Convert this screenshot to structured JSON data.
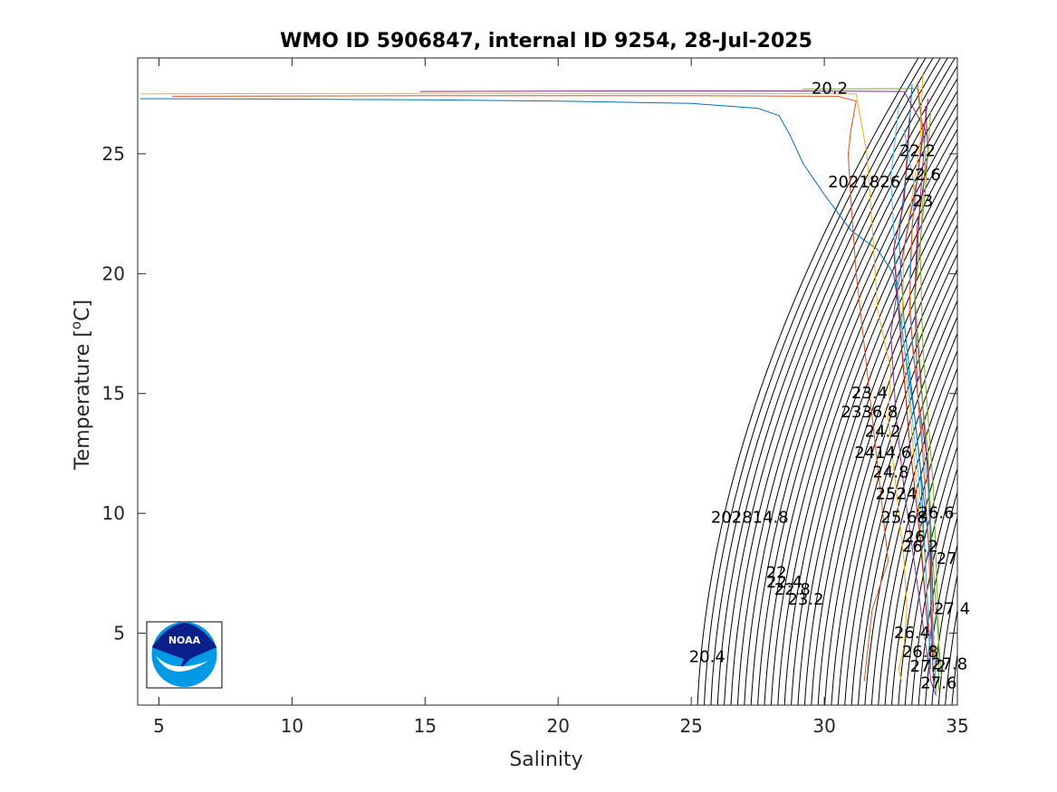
{
  "chart_data": {
    "type": "line",
    "title": "WMO ID 5906847, internal ID 9254, 28-Jul-2025",
    "xlabel": "Salinity",
    "ylabel_main": "Temperature [",
    "ylabel_sup": "o",
    "ylabel_tail": "C]",
    "xlim": [
      4.2,
      35
    ],
    "ylim": [
      2,
      29
    ],
    "xticks": [
      5,
      10,
      15,
      20,
      25,
      30,
      35
    ],
    "yticks": [
      5,
      10,
      15,
      20,
      25
    ],
    "grid": false,
    "legend": "none",
    "density_contours": {
      "description_values_sigma": "isopycnals from 20 to 28 step 0.2",
      "min": 20.0,
      "max": 28.0,
      "step": 0.2,
      "color": "#000000"
    },
    "contour_labels": [
      {
        "text": "20.2",
        "s": 30.2,
        "t": 27.5
      },
      {
        "text": "22.2",
        "s": 33.5,
        "t": 24.9
      },
      {
        "text": "22.6",
        "s": 33.7,
        "t": 23.9
      },
      {
        "text": "2021826",
        "s": 31.5,
        "t": 23.6
      },
      {
        "text": "23",
        "s": 33.7,
        "t": 22.8
      },
      {
        "text": "23.4",
        "s": 31.7,
        "t": 14.8
      },
      {
        "text": "2336.8",
        "s": 31.7,
        "t": 14.0
      },
      {
        "text": "24.2",
        "s": 32.2,
        "t": 13.2
      },
      {
        "text": "2414.6",
        "s": 32.2,
        "t": 12.3
      },
      {
        "text": "24.8",
        "s": 32.5,
        "t": 11.5
      },
      {
        "text": "2524",
        "s": 32.7,
        "t": 10.6
      },
      {
        "text": "26.6",
        "s": 34.2,
        "t": 9.8
      },
      {
        "text": "25.68",
        "s": 33.0,
        "t": 9.6
      },
      {
        "text": "26",
        "s": 33.4,
        "t": 8.8
      },
      {
        "text": "26.2",
        "s": 33.6,
        "t": 8.4
      },
      {
        "text": "27",
        "s": 34.6,
        "t": 7.9
      },
      {
        "text": "202814.8",
        "s": 27.2,
        "t": 9.6
      },
      {
        "text": "22",
        "s": 28.2,
        "t": 7.3
      },
      {
        "text": "22.4",
        "s": 28.5,
        "t": 6.9
      },
      {
        "text": "22.8",
        "s": 28.8,
        "t": 6.6
      },
      {
        "text": "23.2",
        "s": 29.3,
        "t": 6.2
      },
      {
        "text": "27.4",
        "s": 34.8,
        "t": 5.8
      },
      {
        "text": "26.4",
        "s": 33.3,
        "t": 4.8
      },
      {
        "text": "26.8",
        "s": 33.6,
        "t": 4.0
      },
      {
        "text": "27.2",
        "s": 33.9,
        "t": 3.4
      },
      {
        "text": "27.8",
        "s": 34.7,
        "t": 3.5
      },
      {
        "text": "27.6",
        "s": 34.3,
        "t": 2.7
      },
      {
        "text": "20.4",
        "s": 25.6,
        "t": 3.8
      }
    ],
    "series_colors": [
      "#0072BD",
      "#D95319",
      "#EDB120",
      "#7E2F8E",
      "#77AC30",
      "#4DBEEE",
      "#A2142F"
    ],
    "series": [
      {
        "color": "#0072BD",
        "s": [
          4.3,
          10,
          15,
          20,
          25,
          27.5,
          28.3,
          28.7,
          29.2,
          30.0,
          31.0,
          32.0,
          32.6,
          33.0,
          33.4,
          33.7,
          34.0,
          34.1,
          34.2
        ],
        "t": [
          27.3,
          27.28,
          27.25,
          27.2,
          27.1,
          26.9,
          26.6,
          25.8,
          24.6,
          23.3,
          21.8,
          21.0,
          20.0,
          17.0,
          14.0,
          11.0,
          8.0,
          5.0,
          2.5
        ]
      },
      {
        "color": "#D95319",
        "s": [
          5.5,
          15,
          25,
          30.5,
          31.2,
          31.0,
          30.9,
          31.0,
          31.2,
          31.5,
          31.8,
          32.0,
          32.2,
          32.4,
          31.8,
          31.6,
          31.5
        ],
        "t": [
          27.4,
          27.42,
          27.42,
          27.4,
          27.2,
          26.0,
          25.0,
          23.0,
          20.0,
          17.0,
          14.0,
          12.0,
          10.0,
          8.0,
          6.0,
          4.0,
          3.0
        ]
      },
      {
        "color": "#EDB120",
        "s": [
          4.3,
          15,
          25,
          31.2,
          31.6,
          31.8,
          32.0,
          32.5,
          32.4,
          32.6,
          32.8,
          33.0,
          33.1,
          33.0,
          32.8,
          32.9
        ],
        "t": [
          27.5,
          27.52,
          27.52,
          27.5,
          25.0,
          22.0,
          18.5,
          16.0,
          14.0,
          12.0,
          10.0,
          8.0,
          6.0,
          4.5,
          3.5,
          3.0
        ]
      },
      {
        "color": "#7E2F8E",
        "s": [
          14.8,
          22,
          29,
          33.0,
          33.8,
          33.6,
          33.4,
          33.5,
          33.9,
          34.0,
          34.1,
          33.9,
          34.0,
          34.2
        ],
        "t": [
          27.6,
          27.62,
          27.62,
          27.6,
          26.0,
          23.0,
          19.0,
          15.0,
          12.0,
          9.0,
          6.0,
          4.0,
          3.0,
          2.4
        ]
      },
      {
        "color": "#77AC30",
        "s": [
          29.2,
          33.5,
          33.8,
          33.6,
          33.7,
          33.9,
          34.1,
          34.2,
          34.3,
          34.3
        ],
        "t": [
          27.7,
          27.72,
          25.0,
          21.0,
          17.0,
          14.0,
          11.0,
          8.0,
          5.0,
          2.6
        ]
      },
      {
        "color": "#4DBEEE",
        "s": [
          33.0,
          33.4,
          33.2,
          33.3,
          33.6,
          33.9,
          34.0,
          34.1,
          34.2
        ],
        "t": [
          26.0,
          23.5,
          20.0,
          17.0,
          14.0,
          11.0,
          8.0,
          5.0,
          2.5
        ]
      },
      {
        "color": "#A2142F",
        "s": [
          33.8,
          33.9,
          33.5,
          33.4,
          33.6,
          33.8,
          34.0,
          34.0,
          34.1
        ],
        "t": [
          27.0,
          25.0,
          22.0,
          19.0,
          16.0,
          13.0,
          10.0,
          6.0,
          3.0
        ]
      },
      {
        "color": "#0072BD",
        "s": [
          33.3,
          33.1,
          32.8,
          33.0,
          33.3,
          33.6,
          33.8,
          34.0
        ],
        "t": [
          27.9,
          24.5,
          21.5,
          18.0,
          15.0,
          12.0,
          8.0,
          3.5
        ]
      },
      {
        "color": "#D95319",
        "s": [
          33.5,
          33.7,
          33.3,
          33.2,
          33.5,
          33.7,
          33.9,
          34.1
        ],
        "t": [
          28.0,
          26.0,
          22.0,
          18.5,
          15.0,
          12.5,
          9.0,
          4.0
        ]
      },
      {
        "color": "#EDB120",
        "s": [
          33.7,
          33.6,
          33.0,
          32.9,
          33.2,
          33.4,
          33.6,
          33.8
        ],
        "t": [
          28.3,
          25.5,
          21.0,
          17.0,
          14.5,
          12.0,
          9.5,
          6.5
        ]
      },
      {
        "color": "#7E2F8E",
        "s": [
          33.9,
          33.5,
          32.9,
          32.5,
          32.7,
          33.0,
          33.5,
          33.9
        ],
        "t": [
          27.3,
          24.0,
          20.5,
          17.5,
          14.0,
          11.0,
          7.0,
          3.8
        ]
      },
      {
        "color": "#77AC30",
        "s": [
          34.0,
          33.8,
          33.4,
          33.6,
          33.9,
          34.0,
          34.2,
          34.4
        ],
        "t": [
          26.8,
          23.5,
          19.0,
          15.5,
          12.5,
          9.5,
          6.0,
          3.2
        ]
      },
      {
        "color": "#4DBEEE",
        "s": [
          32.8,
          32.5,
          32.7,
          33.1,
          33.5,
          33.8,
          34.0
        ],
        "t": [
          27.0,
          24.0,
          20.0,
          16.0,
          12.0,
          8.0,
          4.0
        ]
      },
      {
        "color": "#A2142F",
        "s": [
          33.2,
          33.0,
          32.6,
          32.9,
          33.2,
          33.6,
          33.9
        ],
        "t": [
          26.5,
          23.0,
          21.0,
          17.0,
          13.0,
          9.0,
          5.0
        ]
      }
    ]
  },
  "logo": {
    "text": "NOAA",
    "name": "noaa-logo"
  }
}
